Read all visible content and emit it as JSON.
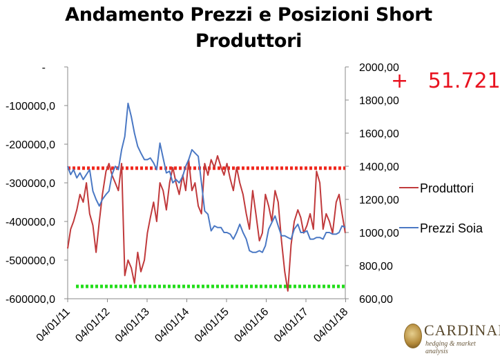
{
  "title_line1": "Andamento Prezzi e Posizioni Short",
  "title_line2": "Produttori",
  "delta_label": "+   51.721",
  "logo": {
    "name": "CARDINAL",
    "tagline": "hedging & market analysis"
  },
  "colors": {
    "produttori": "#c0393b",
    "prezzi_soia": "#4a78c4",
    "upper_line": "#f0281e",
    "lower_line": "#22dd1a",
    "delta": "#e8121f"
  },
  "chart_data": {
    "type": "line",
    "x_tick_labels": [
      "04/01/11",
      "04/01/12",
      "04/01/13",
      "04/01/14",
      "04/01/15",
      "04/01/16",
      "04/01/17",
      "04/01/18"
    ],
    "y_left": {
      "ticks": [
        "-",
        "-100000,0",
        "-200000,0",
        "-300000,0",
        "-400000,0",
        "-500000,0",
        "-600000,0"
      ],
      "range": [
        -600000,
        0
      ]
    },
    "y_right": {
      "ticks": [
        "2000,00",
        "1800,00",
        "1600,00",
        "1400,00",
        "1200,00",
        "1000,00",
        "800,00",
        "600,00"
      ],
      "range": [
        600,
        2000
      ]
    },
    "series": [
      {
        "name": "Produttori",
        "axis": "left",
        "x": [
          "2011-01-04",
          "2011-02-01",
          "2011-03-01",
          "2011-04-01",
          "2011-05-01",
          "2011-06-01",
          "2011-07-01",
          "2011-08-01",
          "2011-09-01",
          "2011-10-01",
          "2011-11-01",
          "2011-12-01",
          "2012-01-04",
          "2012-02-01",
          "2012-03-01",
          "2012-04-01",
          "2012-05-01",
          "2012-06-01",
          "2012-07-01",
          "2012-08-01",
          "2012-09-01",
          "2012-10-01",
          "2012-11-01",
          "2012-12-01",
          "2013-01-04",
          "2013-02-01",
          "2013-03-01",
          "2013-04-01",
          "2013-05-01",
          "2013-06-01",
          "2013-07-01",
          "2013-08-01",
          "2013-09-01",
          "2013-10-01",
          "2013-11-01",
          "2013-12-01",
          "2014-01-04",
          "2014-02-01",
          "2014-03-01",
          "2014-04-01",
          "2014-05-01",
          "2014-06-01",
          "2014-07-01",
          "2014-08-01",
          "2014-09-01",
          "2014-10-01",
          "2014-11-01",
          "2014-12-01",
          "2015-01-04",
          "2015-02-01",
          "2015-03-01",
          "2015-04-01",
          "2015-05-01",
          "2015-06-01",
          "2015-07-01",
          "2015-08-01",
          "2015-09-01",
          "2015-10-01",
          "2015-11-01",
          "2015-12-01",
          "2016-01-04",
          "2016-02-01",
          "2016-03-01",
          "2016-04-01",
          "2016-05-01",
          "2016-06-01",
          "2016-07-01",
          "2016-08-01",
          "2016-09-01",
          "2016-10-01",
          "2016-11-01",
          "2016-12-01",
          "2017-01-04",
          "2017-02-01",
          "2017-03-01",
          "2017-04-01",
          "2017-05-01",
          "2017-06-01",
          "2017-07-01",
          "2017-08-01",
          "2017-09-01",
          "2017-10-01",
          "2017-11-01",
          "2017-12-01",
          "2018-01-04",
          "2018-02-01",
          "2018-03-01",
          "2018-04-01"
        ],
        "values": [
          -470000,
          -420000,
          -400000,
          -370000,
          -330000,
          -350000,
          -300000,
          -380000,
          -410000,
          -480000,
          -400000,
          -330000,
          -270000,
          -250000,
          -280000,
          -300000,
          -320000,
          -250000,
          -540000,
          -500000,
          -520000,
          -560000,
          -480000,
          -530000,
          -500000,
          -430000,
          -390000,
          -350000,
          -400000,
          -300000,
          -320000,
          -370000,
          -300000,
          -260000,
          -300000,
          -330000,
          -280000,
          -320000,
          -240000,
          -320000,
          -300000,
          -360000,
          -380000,
          -250000,
          -280000,
          -240000,
          -260000,
          -230000,
          -260000,
          -280000,
          -250000,
          -290000,
          -320000,
          -260000,
          -300000,
          -330000,
          -380000,
          -420000,
          -320000,
          -380000,
          -450000,
          -430000,
          -330000,
          -360000,
          -400000,
          -320000,
          -350000,
          -450000,
          -530000,
          -580000,
          -460000,
          -400000,
          -370000,
          -390000,
          -430000,
          -410000,
          -380000,
          -420000,
          -270000,
          -300000,
          -420000,
          -380000,
          -400000,
          -430000,
          -350000,
          -330000,
          -380000,
          -430000
        ]
      },
      {
        "name": "Prezzi Soia",
        "axis": "right",
        "x": [
          "2011-01-04",
          "2011-02-01",
          "2011-03-01",
          "2011-04-01",
          "2011-05-01",
          "2011-06-01",
          "2011-07-01",
          "2011-08-01",
          "2011-09-01",
          "2011-10-01",
          "2011-11-01",
          "2011-12-01",
          "2012-01-04",
          "2012-02-01",
          "2012-03-01",
          "2012-04-01",
          "2012-05-01",
          "2012-06-01",
          "2012-07-01",
          "2012-08-01",
          "2012-09-01",
          "2012-10-01",
          "2012-11-01",
          "2012-12-01",
          "2013-01-04",
          "2013-02-01",
          "2013-03-01",
          "2013-04-01",
          "2013-05-01",
          "2013-06-01",
          "2013-07-01",
          "2013-08-01",
          "2013-09-01",
          "2013-10-01",
          "2013-11-01",
          "2013-12-01",
          "2014-01-04",
          "2014-02-01",
          "2014-03-01",
          "2014-04-01",
          "2014-05-01",
          "2014-06-01",
          "2014-07-01",
          "2014-08-01",
          "2014-09-01",
          "2014-10-01",
          "2014-11-01",
          "2014-12-01",
          "2015-01-04",
          "2015-02-01",
          "2015-03-01",
          "2015-04-01",
          "2015-05-01",
          "2015-06-01",
          "2015-07-01",
          "2015-08-01",
          "2015-09-01",
          "2015-10-01",
          "2015-11-01",
          "2015-12-01",
          "2016-01-04",
          "2016-02-01",
          "2016-03-01",
          "2016-04-01",
          "2016-05-01",
          "2016-06-01",
          "2016-07-01",
          "2016-08-01",
          "2016-09-01",
          "2016-10-01",
          "2016-11-01",
          "2016-12-01",
          "2017-01-04",
          "2017-02-01",
          "2017-03-01",
          "2017-04-01",
          "2017-05-01",
          "2017-06-01",
          "2017-07-01",
          "2017-08-01",
          "2017-09-01",
          "2017-10-01",
          "2017-11-01",
          "2017-12-01",
          "2018-01-04",
          "2018-02-01",
          "2018-03-01",
          "2018-04-01"
        ],
        "values": [
          1400,
          1350,
          1380,
          1330,
          1360,
          1320,
          1350,
          1380,
          1250,
          1200,
          1160,
          1200,
          1230,
          1250,
          1350,
          1400,
          1380,
          1500,
          1580,
          1780,
          1700,
          1600,
          1520,
          1480,
          1440,
          1440,
          1450,
          1420,
          1380,
          1540,
          1450,
          1360,
          1370,
          1300,
          1320,
          1300,
          1340,
          1400,
          1440,
          1500,
          1480,
          1460,
          1300,
          1130,
          1110,
          1010,
          1040,
          1030,
          1030,
          1000,
          1000,
          990,
          960,
          1000,
          1050,
          1000,
          960,
          890,
          880,
          880,
          890,
          880,
          920,
          1020,
          1060,
          1100,
          1040,
          980,
          980,
          970,
          960,
          1020,
          1050,
          1000,
          1000,
          1010,
          960,
          960,
          970,
          970,
          960,
          1000,
          1000,
          990,
          990,
          1000,
          1040,
          1030
        ]
      }
    ],
    "reference_lines": [
      {
        "axis": "left",
        "value": -262000,
        "style": "dotted"
      },
      {
        "axis": "left",
        "value": -568000,
        "style": "dotted"
      }
    ],
    "legend_position": "right",
    "grid": false
  }
}
